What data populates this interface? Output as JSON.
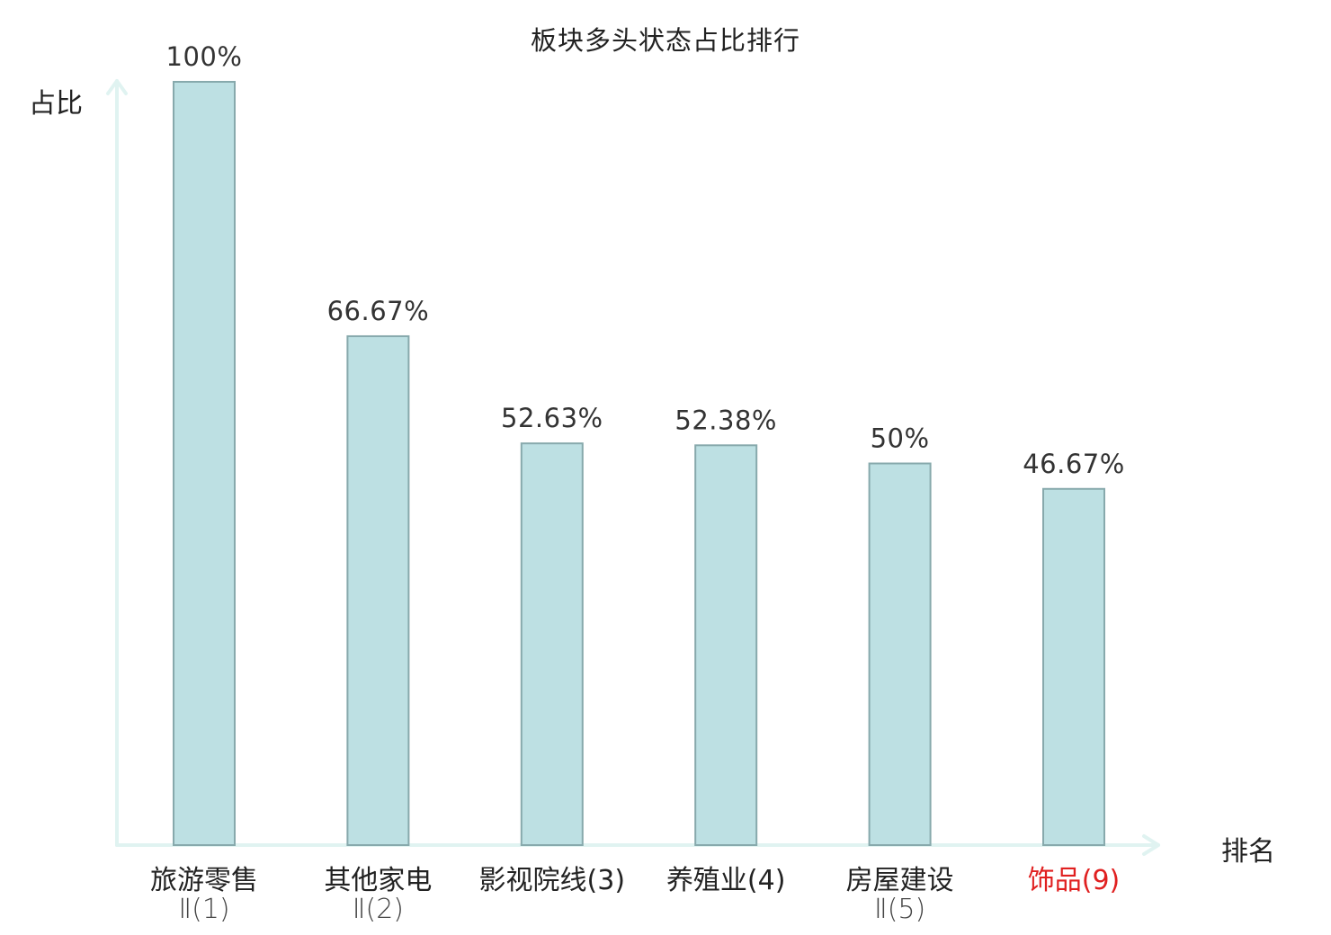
{
  "chart_data": {
    "type": "bar",
    "title": "板块多头状态占比排行",
    "ylabel": "占比",
    "xlabel": "排名",
    "ylim": [
      0,
      100
    ],
    "grid": false,
    "categories": [
      {
        "line1": "旅游零售",
        "line2": "Ⅱ(1)",
        "highlight": false
      },
      {
        "line1": "其他家电",
        "line2": "Ⅱ(2)",
        "highlight": false
      },
      {
        "line1": "影视院线(3)",
        "line2": "",
        "highlight": false
      },
      {
        "line1": "养殖业(4)",
        "line2": "",
        "highlight": false
      },
      {
        "line1": "房屋建设",
        "line2": "Ⅱ(5)",
        "highlight": false
      },
      {
        "line1": "饰品(9)",
        "line2": "",
        "highlight": true
      }
    ],
    "values": [
      100,
      66.67,
      52.63,
      52.38,
      50,
      46.67
    ],
    "value_labels": [
      "100%",
      "66.67%",
      "52.63%",
      "52.38%",
      "50%",
      "46.67%"
    ]
  },
  "colors": {
    "bar_fill": "#bde0e3",
    "bar_stroke": "#87a9ac",
    "axis": "#e0f3f1",
    "highlight": "#e02020",
    "text": "#222222"
  }
}
